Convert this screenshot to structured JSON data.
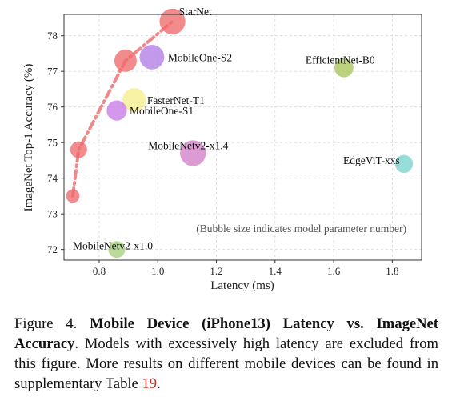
{
  "chart_data": {
    "type": "scatter",
    "variant": "bubble",
    "xlabel": "Latency (ms)",
    "ylabel": "ImageNet Top-1 Accuracy (%)",
    "xlim": [
      0.68,
      1.9
    ],
    "ylim": [
      71.7,
      78.6
    ],
    "xticks": [
      "0.8",
      "1.0",
      "1.2",
      "1.4",
      "1.6",
      "1.8"
    ],
    "yticks": [
      "72",
      "73",
      "74",
      "75",
      "76",
      "77",
      "78"
    ],
    "grid": true,
    "annotation": "(Bubble size indicates model parameter number)",
    "starnet_trend": [
      [
        0.71,
        73.5
      ],
      [
        0.73,
        74.8
      ],
      [
        0.89,
        77.3
      ],
      [
        1.05,
        78.4
      ]
    ],
    "points": [
      {
        "label": "",
        "x": 0.71,
        "y": 73.5,
        "color": "#ee6a6c",
        "size": 0.6
      },
      {
        "label": "",
        "x": 0.73,
        "y": 74.8,
        "color": "#ee6a6c",
        "size": 0.75
      },
      {
        "label": "",
        "x": 0.89,
        "y": 77.3,
        "color": "#ee6a6c",
        "size": 1.0
      },
      {
        "label": "StarNet",
        "x": 1.05,
        "y": 78.4,
        "color": "#ee6a6c",
        "size": 1.15
      },
      {
        "label": "MobileOne-S2",
        "x": 0.98,
        "y": 77.4,
        "color": "#b27ce6",
        "size": 1.1
      },
      {
        "label": "FasterNet-T1",
        "x": 0.92,
        "y": 76.2,
        "color": "#f5ee8a",
        "size": 1.05
      },
      {
        "label": "MobileOne-S1",
        "x": 0.86,
        "y": 75.9,
        "color": "#c77ae6",
        "size": 0.9
      },
      {
        "label": "MobileNetv2-x1.4",
        "x": 1.12,
        "y": 74.7,
        "color": "#d27fc6",
        "size": 1.15
      },
      {
        "label": "MobileNetv2-x1.0",
        "x": 0.86,
        "y": 72.0,
        "color": "#a5d07d",
        "size": 0.75
      },
      {
        "label": "EfficientNet-B0",
        "x": 1.635,
        "y": 77.1,
        "color": "#a9c55d",
        "size": 0.85
      },
      {
        "label": "EdgeViT-xxs",
        "x": 1.84,
        "y": 74.4,
        "color": "#7ad4cd",
        "size": 0.8
      }
    ]
  },
  "caption": {
    "figure_label": "Figure 4.",
    "bold_title": "Mobile Device (iPhone13) Latency vs. ImageNet Accuracy",
    "text_after_title": ". Models with excessively high latency are excluded from this figure. More results on different mobile devices can be found in supplementary Table ",
    "table_ref": "19",
    "end": "."
  }
}
